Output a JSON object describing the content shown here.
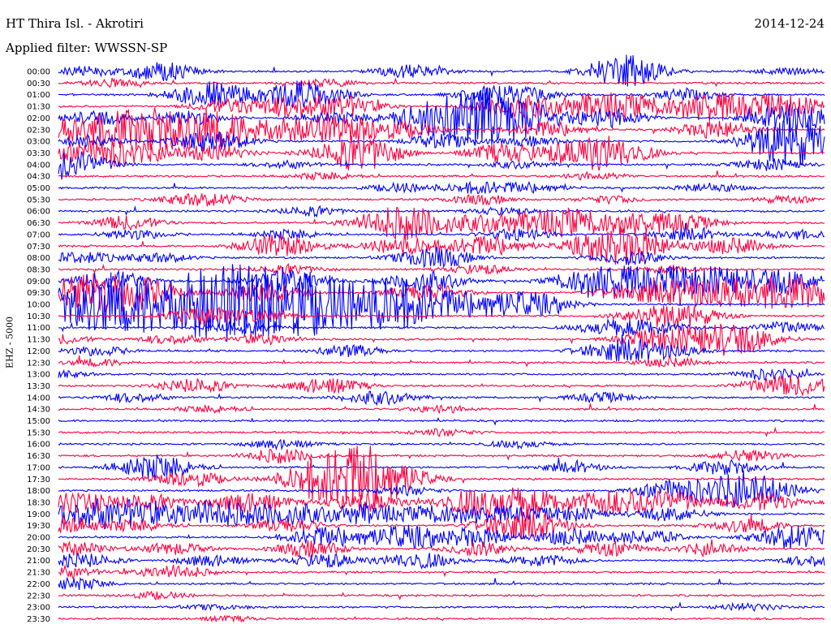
{
  "header": {
    "station": "HT Thira Isl. - Akrotiri",
    "date": "2014-12-24",
    "filter": "Applied filter: WWSSN-SP",
    "channel": "EHZ - 5000"
  },
  "chart_data": {
    "type": "line",
    "title": "HT Thira Isl. - Akrotiri",
    "ylabel": "EHZ - 5000",
    "date": "2014-12-24",
    "colors": {
      "odd": "#0000ff",
      "even": "#ff0040"
    },
    "grid": false,
    "rows": [
      {
        "label": "00:00",
        "color": "#0000ff",
        "bursts": [
          [
            0.03,
            0.4
          ],
          [
            0.12,
            0.5
          ],
          [
            0.15,
            0.4
          ],
          [
            0.46,
            0.6
          ],
          [
            0.73,
            0.8
          ],
          [
            0.75,
            0.7
          ],
          [
            0.95,
            0.3
          ]
        ]
      },
      {
        "label": "00:30",
        "color": "#ff0040",
        "bursts": [
          [
            0.07,
            0.3
          ],
          [
            0.35,
            0.3
          ]
        ]
      },
      {
        "label": "01:00",
        "color": "#0000ff",
        "bursts": [
          [
            0.2,
            1.1
          ],
          [
            0.32,
            1.2
          ],
          [
            0.57,
            0.7
          ],
          [
            0.62,
            0.4
          ],
          [
            0.82,
            0.5
          ]
        ]
      },
      {
        "label": "01:30",
        "color": "#ff0040",
        "bursts": [
          [
            0.22,
            0.6
          ],
          [
            0.3,
            0.8
          ],
          [
            0.37,
            0.9
          ],
          [
            0.6,
            1.0
          ],
          [
            0.69,
            0.9
          ],
          [
            0.75,
            0.8
          ],
          [
            0.85,
            1.3
          ],
          [
            0.95,
            1.0
          ]
        ]
      },
      {
        "label": "02:00",
        "color": "#0000ff",
        "bursts": [
          [
            0.05,
            0.6
          ],
          [
            0.17,
            0.6
          ],
          [
            0.36,
            0.5
          ],
          [
            0.48,
            1.1
          ],
          [
            0.53,
            1.2
          ],
          [
            0.57,
            1.0
          ],
          [
            0.6,
            1.3
          ],
          [
            0.72,
            0.8
          ],
          [
            0.96,
            1.2
          ]
        ]
      },
      {
        "label": "02:30",
        "color": "#ff0040",
        "bursts": [
          [
            0.03,
            1.1
          ],
          [
            0.1,
            1.2
          ],
          [
            0.15,
            1.1
          ],
          [
            0.22,
            1.3
          ],
          [
            0.29,
            0.6
          ],
          [
            0.35,
            0.9
          ],
          [
            0.41,
            0.8
          ],
          [
            0.47,
            0.4
          ],
          [
            0.64,
            0.7
          ],
          [
            0.86,
            0.8
          ]
        ]
      },
      {
        "label": "03:00",
        "color": "#0000ff",
        "bursts": [
          [
            0.04,
            0.5
          ],
          [
            0.2,
            0.9
          ],
          [
            0.5,
            0.6
          ],
          [
            0.62,
            0.4
          ],
          [
            0.94,
            1.0
          ],
          [
            0.97,
            1.4
          ]
        ]
      },
      {
        "label": "03:30",
        "color": "#ff0040",
        "bursts": [
          [
            0.04,
            0.9
          ],
          [
            0.1,
            0.8
          ],
          [
            0.2,
            0.7
          ],
          [
            0.38,
            1.0
          ],
          [
            0.41,
            0.7
          ],
          [
            0.58,
            0.8
          ],
          [
            0.69,
            1.3
          ],
          [
            0.74,
            0.6
          ]
        ]
      },
      {
        "label": "04:00",
        "color": "#0000ff",
        "bursts": [
          [
            0.01,
            1.3
          ],
          [
            0.3,
            0.3
          ],
          [
            0.6,
            0.3
          ],
          [
            0.93,
            0.5
          ]
        ]
      },
      {
        "label": "04:30",
        "color": "#ff0040",
        "bursts": [
          [
            0.35,
            0.3
          ],
          [
            0.7,
            0.3
          ]
        ]
      },
      {
        "label": "05:00",
        "color": "#0000ff",
        "bursts": [
          [
            0.45,
            0.4
          ],
          [
            0.55,
            0.5
          ],
          [
            0.62,
            0.4
          ],
          [
            0.85,
            0.4
          ]
        ]
      },
      {
        "label": "05:30",
        "color": "#ff0040",
        "bursts": [
          [
            0.17,
            0.4
          ],
          [
            0.21,
            0.3
          ],
          [
            0.55,
            0.4
          ],
          [
            0.72,
            0.3
          ],
          [
            0.95,
            0.3
          ]
        ]
      },
      {
        "label": "06:00",
        "color": "#0000ff",
        "bursts": [
          [
            0.33,
            0.4
          ],
          [
            0.58,
            0.3
          ]
        ]
      },
      {
        "label": "06:30",
        "color": "#ff0040",
        "bursts": [
          [
            0.09,
            0.6
          ],
          [
            0.43,
            1.0
          ],
          [
            0.48,
            0.9
          ],
          [
            0.57,
            0.8
          ],
          [
            0.66,
            1.2
          ],
          [
            0.75,
            0.9
          ],
          [
            0.82,
            0.6
          ]
        ]
      },
      {
        "label": "07:00",
        "color": "#0000ff",
        "bursts": [
          [
            0.1,
            0.4
          ],
          [
            0.3,
            0.4
          ],
          [
            0.6,
            0.5
          ],
          [
            0.82,
            0.5
          ],
          [
            0.96,
            0.4
          ]
        ]
      },
      {
        "label": "07:30",
        "color": "#ff0040",
        "bursts": [
          [
            0.29,
            1.0
          ],
          [
            0.45,
            0.8
          ],
          [
            0.56,
            0.9
          ],
          [
            0.7,
            0.7
          ],
          [
            0.75,
            1.3
          ],
          [
            0.88,
            0.7
          ]
        ]
      },
      {
        "label": "08:00",
        "color": "#0000ff",
        "bursts": [
          [
            0.03,
            0.5
          ],
          [
            0.13,
            0.4
          ],
          [
            0.49,
            0.9
          ],
          [
            0.75,
            0.6
          ]
        ]
      },
      {
        "label": "08:30",
        "color": "#ff0040",
        "bursts": [
          [
            0.3,
            0.4
          ],
          [
            0.55,
            0.4
          ],
          [
            0.8,
            0.3
          ]
        ]
      },
      {
        "label": "09:00",
        "color": "#0000ff",
        "bursts": [
          [
            0.07,
            0.9
          ],
          [
            0.3,
            1.0
          ],
          [
            0.48,
            0.9
          ],
          [
            0.69,
            0.8
          ],
          [
            0.73,
            1.1
          ],
          [
            0.81,
            1.0
          ],
          [
            0.87,
            0.9
          ],
          [
            0.95,
            1.0
          ]
        ]
      },
      {
        "label": "09:30",
        "color": "#ff0040",
        "bursts": [
          [
            0.02,
            1.2
          ],
          [
            0.07,
            0.9
          ],
          [
            0.12,
            1.0
          ],
          [
            0.27,
            0.9
          ],
          [
            0.48,
            0.8
          ],
          [
            0.75,
            0.7
          ],
          [
            0.83,
            1.1
          ],
          [
            0.91,
            1.2
          ],
          [
            0.98,
            1.0
          ]
        ]
      },
      {
        "label": "10:00",
        "color": "#0000ff",
        "bursts": [
          [
            0.03,
            1.6
          ],
          [
            0.09,
            1.5
          ],
          [
            0.15,
            1.3
          ],
          [
            0.2,
            1.7
          ],
          [
            0.25,
            1.9
          ],
          [
            0.3,
            1.6
          ],
          [
            0.36,
            1.5
          ],
          [
            0.42,
            1.4
          ],
          [
            0.47,
            1.2
          ],
          [
            0.55,
            1.0
          ],
          [
            0.62,
            0.9
          ]
        ]
      },
      {
        "label": "10:30",
        "color": "#ff0040",
        "bursts": [
          [
            0.19,
            0.8
          ],
          [
            0.27,
            0.4
          ],
          [
            0.78,
            0.8
          ],
          [
            0.83,
            0.6
          ]
        ]
      },
      {
        "label": "11:00",
        "color": "#0000ff",
        "bursts": [
          [
            0.24,
            0.5
          ],
          [
            0.72,
            0.6
          ],
          [
            0.78,
            0.5
          ],
          [
            0.95,
            0.5
          ]
        ]
      },
      {
        "label": "11:30",
        "color": "#ff0040",
        "bursts": [
          [
            0.0,
            0.4
          ],
          [
            0.15,
            0.4
          ],
          [
            0.27,
            0.4
          ],
          [
            0.78,
            0.8
          ],
          [
            0.85,
            1.0
          ],
          [
            0.9,
            0.8
          ]
        ]
      },
      {
        "label": "12:00",
        "color": "#0000ff",
        "bursts": [
          [
            0.05,
            0.4
          ],
          [
            0.38,
            0.5
          ],
          [
            0.73,
            0.9
          ],
          [
            0.8,
            0.5
          ]
        ]
      },
      {
        "label": "12:30",
        "color": "#ff0040",
        "bursts": [
          [
            0.05,
            0.3
          ],
          [
            0.8,
            0.4
          ]
        ]
      },
      {
        "label": "13:00",
        "color": "#0000ff",
        "bursts": [
          [
            0.0,
            0.3
          ],
          [
            0.93,
            0.5
          ]
        ]
      },
      {
        "label": "13:30",
        "color": "#ff0040",
        "bursts": [
          [
            0.18,
            0.6
          ],
          [
            0.35,
            0.7
          ],
          [
            0.93,
            0.6
          ],
          [
            0.98,
            0.6
          ]
        ]
      },
      {
        "label": "14:00",
        "color": "#0000ff",
        "bursts": [
          [
            0.1,
            0.4
          ],
          [
            0.42,
            0.6
          ],
          [
            0.71,
            0.4
          ]
        ]
      },
      {
        "label": "14:30",
        "color": "#ff0040",
        "bursts": [
          [
            0.2,
            0.3
          ],
          [
            0.5,
            0.3
          ]
        ]
      },
      {
        "label": "15:00",
        "color": "#0000ff",
        "bursts": []
      },
      {
        "label": "15:30",
        "color": "#ff0040",
        "bursts": [
          [
            0.5,
            0.3
          ]
        ]
      },
      {
        "label": "16:00",
        "color": "#0000ff",
        "bursts": [
          [
            0.29,
            0.4
          ],
          [
            0.6,
            0.3
          ]
        ]
      },
      {
        "label": "16:30",
        "color": "#ff0040",
        "bursts": [
          [
            0.29,
            0.6
          ],
          [
            0.9,
            0.5
          ]
        ]
      },
      {
        "label": "17:00",
        "color": "#0000ff",
        "bursts": [
          [
            0.11,
            0.5
          ],
          [
            0.14,
            0.7
          ],
          [
            0.67,
            0.4
          ],
          [
            0.87,
            0.6
          ]
        ]
      },
      {
        "label": "17:30",
        "color": "#ff0040",
        "bursts": [
          [
            0.17,
            0.7
          ],
          [
            0.34,
            1.3
          ],
          [
            0.39,
            1.4
          ],
          [
            0.42,
            1.5
          ]
        ]
      },
      {
        "label": "18:00",
        "color": "#0000ff",
        "bursts": [
          [
            0.45,
            0.4
          ],
          [
            0.8,
            0.8
          ],
          [
            0.87,
            0.9
          ],
          [
            0.92,
            1.0
          ]
        ]
      },
      {
        "label": "18:30",
        "color": "#ff0040",
        "bursts": [
          [
            0.02,
            0.9
          ],
          [
            0.12,
            0.7
          ],
          [
            0.25,
            0.9
          ],
          [
            0.4,
            0.8
          ],
          [
            0.55,
            1.2
          ],
          [
            0.62,
            0.9
          ],
          [
            0.72,
            1.0
          ],
          [
            0.8,
            0.9
          ],
          [
            0.92,
            0.8
          ]
        ]
      },
      {
        "label": "19:00",
        "color": "#0000ff",
        "bursts": [
          [
            0.03,
            1.1
          ],
          [
            0.1,
            1.0
          ],
          [
            0.2,
            1.2
          ],
          [
            0.3,
            1.0
          ],
          [
            0.4,
            0.9
          ],
          [
            0.5,
            0.8
          ],
          [
            0.58,
            0.7
          ],
          [
            0.67,
            0.6
          ],
          [
            0.8,
            0.6
          ]
        ]
      },
      {
        "label": "19:30",
        "color": "#ff0040",
        "bursts": [
          [
            0.0,
            0.8
          ],
          [
            0.1,
            0.5
          ],
          [
            0.3,
            0.6
          ],
          [
            0.58,
            0.6
          ],
          [
            0.62,
            0.9
          ],
          [
            0.9,
            0.6
          ]
        ]
      },
      {
        "label": "20:00",
        "color": "#0000ff",
        "bursts": [
          [
            0.35,
            0.9
          ],
          [
            0.45,
            1.0
          ],
          [
            0.55,
            0.8
          ],
          [
            0.67,
            0.7
          ],
          [
            0.77,
            0.6
          ],
          [
            0.96,
            1.0
          ]
        ]
      },
      {
        "label": "20:30",
        "color": "#ff0040",
        "bursts": [
          [
            0.02,
            0.6
          ],
          [
            0.15,
            0.5
          ],
          [
            0.33,
            0.7
          ],
          [
            0.55,
            0.6
          ],
          [
            0.72,
            0.6
          ],
          [
            0.85,
            0.5
          ]
        ]
      },
      {
        "label": "21:00",
        "color": "#0000ff",
        "bursts": [
          [
            0.03,
            0.6
          ],
          [
            0.2,
            0.5
          ],
          [
            0.35,
            0.6
          ],
          [
            0.47,
            0.7
          ],
          [
            0.63,
            0.5
          ],
          [
            0.99,
            0.5
          ]
        ]
      },
      {
        "label": "21:30",
        "color": "#ff0040",
        "bursts": [
          [
            0.01,
            0.5
          ],
          [
            0.15,
            0.6
          ]
        ]
      },
      {
        "label": "22:00",
        "color": "#0000ff",
        "bursts": [
          [
            0.02,
            0.5
          ]
        ]
      },
      {
        "label": "22:30",
        "color": "#ff0040",
        "bursts": [
          [
            0.13,
            0.3
          ]
        ]
      },
      {
        "label": "23:00",
        "color": "#0000ff",
        "bursts": [
          [
            0.2,
            0.2
          ],
          [
            0.9,
            0.3
          ]
        ]
      },
      {
        "label": "23:30",
        "color": "#ff0040",
        "bursts": [
          [
            0.22,
            0.2
          ]
        ]
      }
    ]
  }
}
